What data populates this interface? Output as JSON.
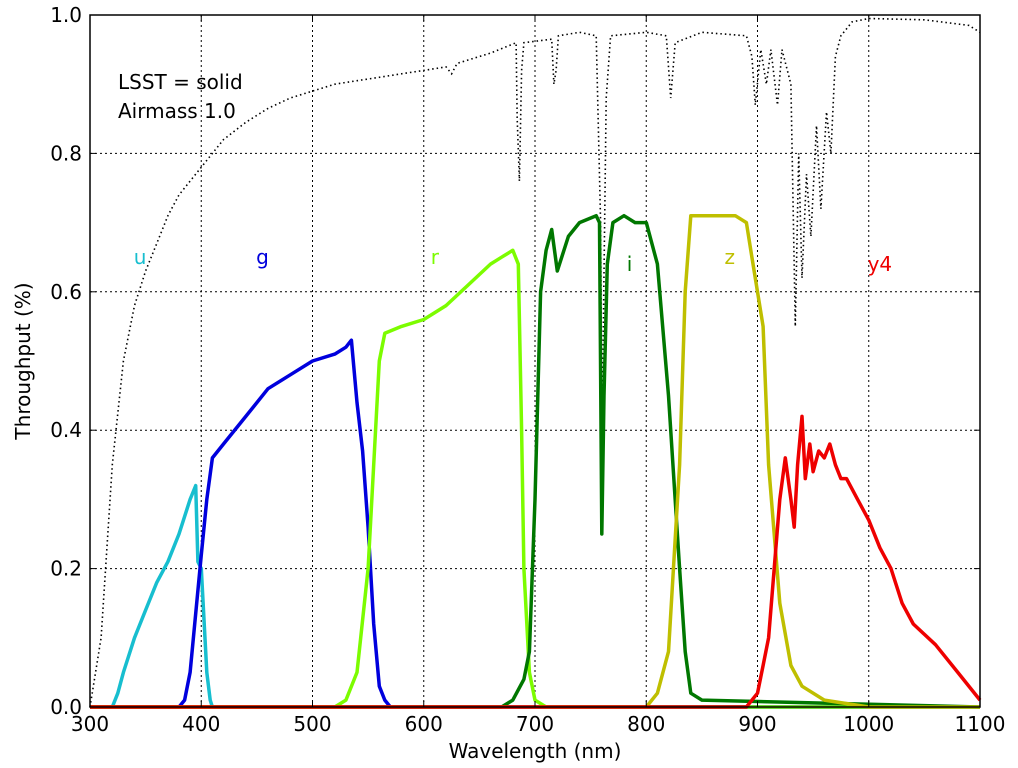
{
  "chart_data": {
    "type": "line",
    "title": "",
    "xlabel": "Wavelength (nm)",
    "ylabel": "Throughput (%)",
    "xlim": [
      300,
      1100
    ],
    "ylim": [
      0.0,
      1.0
    ],
    "xticks": [
      "300",
      "400",
      "500",
      "600",
      "700",
      "800",
      "900",
      "1000",
      "1100"
    ],
    "yticks": [
      "0.0",
      "0.2",
      "0.4",
      "0.6",
      "0.8",
      "1.0"
    ],
    "grid": true,
    "annotations": [
      "LSST = solid",
      "Airmass 1.0"
    ],
    "atmosphere": {
      "style": "dotted",
      "color": "#000000",
      "points": [
        [
          300,
          0
        ],
        [
          310,
          0.1
        ],
        [
          320,
          0.35
        ],
        [
          330,
          0.5
        ],
        [
          340,
          0.58
        ],
        [
          350,
          0.63
        ],
        [
          360,
          0.67
        ],
        [
          370,
          0.71
        ],
        [
          380,
          0.74
        ],
        [
          390,
          0.76
        ],
        [
          400,
          0.78
        ],
        [
          420,
          0.82
        ],
        [
          440,
          0.845
        ],
        [
          460,
          0.865
        ],
        [
          480,
          0.88
        ],
        [
          500,
          0.89
        ],
        [
          520,
          0.9
        ],
        [
          540,
          0.905
        ],
        [
          560,
          0.91
        ],
        [
          580,
          0.915
        ],
        [
          600,
          0.92
        ],
        [
          620,
          0.925
        ],
        [
          625,
          0.915
        ],
        [
          630,
          0.93
        ],
        [
          660,
          0.945
        ],
        [
          680,
          0.958
        ],
        [
          683,
          0.96
        ],
        [
          684,
          0.85
        ],
        [
          686,
          0.76
        ],
        [
          688,
          0.92
        ],
        [
          690,
          0.96
        ],
        [
          715,
          0.965
        ],
        [
          717,
          0.9
        ],
        [
          719,
          0.92
        ],
        [
          721,
          0.97
        ],
        [
          740,
          0.975
        ],
        [
          755,
          0.97
        ],
        [
          759,
          0.7
        ],
        [
          760,
          0.43
        ],
        [
          761,
          0.5
        ],
        [
          764,
          0.88
        ],
        [
          768,
          0.97
        ],
        [
          800,
          0.975
        ],
        [
          818,
          0.97
        ],
        [
          822,
          0.88
        ],
        [
          826,
          0.96
        ],
        [
          850,
          0.975
        ],
        [
          890,
          0.97
        ],
        [
          895,
          0.94
        ],
        [
          898,
          0.87
        ],
        [
          903,
          0.95
        ],
        [
          908,
          0.9
        ],
        [
          912,
          0.95
        ],
        [
          918,
          0.87
        ],
        [
          922,
          0.95
        ],
        [
          930,
          0.9
        ],
        [
          934,
          0.55
        ],
        [
          937,
          0.8
        ],
        [
          940,
          0.62
        ],
        [
          944,
          0.77
        ],
        [
          948,
          0.68
        ],
        [
          953,
          0.84
        ],
        [
          957,
          0.72
        ],
        [
          962,
          0.86
        ],
        [
          966,
          0.8
        ],
        [
          970,
          0.94
        ],
        [
          975,
          0.97
        ],
        [
          985,
          0.99
        ],
        [
          1000,
          0.995
        ],
        [
          1050,
          0.993
        ],
        [
          1090,
          0.985
        ],
        [
          1100,
          0.975
        ]
      ]
    },
    "series": [
      {
        "name": "u",
        "color": "#17becf",
        "points": [
          [
            300,
            0
          ],
          [
            320,
            0
          ],
          [
            325,
            0.02
          ],
          [
            330,
            0.05
          ],
          [
            340,
            0.1
          ],
          [
            350,
            0.14
          ],
          [
            360,
            0.18
          ],
          [
            370,
            0.21
          ],
          [
            380,
            0.25
          ],
          [
            390,
            0.3
          ],
          [
            395,
            0.32
          ],
          [
            397,
            0.21
          ],
          [
            400,
            0.2
          ],
          [
            405,
            0.05
          ],
          [
            408,
            0.01
          ],
          [
            410,
            0
          ],
          [
            1100,
            0
          ]
        ]
      },
      {
        "name": "g",
        "color": "#0000dd",
        "points": [
          [
            300,
            0
          ],
          [
            380,
            0
          ],
          [
            385,
            0.01
          ],
          [
            390,
            0.05
          ],
          [
            400,
            0.22
          ],
          [
            405,
            0.3
          ],
          [
            410,
            0.36
          ],
          [
            420,
            0.38
          ],
          [
            440,
            0.42
          ],
          [
            460,
            0.46
          ],
          [
            480,
            0.48
          ],
          [
            500,
            0.5
          ],
          [
            520,
            0.51
          ],
          [
            530,
            0.52
          ],
          [
            535,
            0.53
          ],
          [
            540,
            0.44
          ],
          [
            545,
            0.37
          ],
          [
            550,
            0.26
          ],
          [
            555,
            0.12
          ],
          [
            560,
            0.03
          ],
          [
            565,
            0.01
          ],
          [
            570,
            0
          ],
          [
            1100,
            0
          ]
        ]
      },
      {
        "name": "r",
        "color": "#7cfc00",
        "points": [
          [
            300,
            0
          ],
          [
            520,
            0
          ],
          [
            530,
            0.01
          ],
          [
            540,
            0.05
          ],
          [
            550,
            0.2
          ],
          [
            555,
            0.35
          ],
          [
            560,
            0.5
          ],
          [
            565,
            0.54
          ],
          [
            580,
            0.55
          ],
          [
            600,
            0.56
          ],
          [
            620,
            0.58
          ],
          [
            640,
            0.61
          ],
          [
            660,
            0.64
          ],
          [
            670,
            0.65
          ],
          [
            680,
            0.66
          ],
          [
            685,
            0.64
          ],
          [
            688,
            0.4
          ],
          [
            690,
            0.2
          ],
          [
            695,
            0.05
          ],
          [
            700,
            0.01
          ],
          [
            710,
            0
          ],
          [
            1100,
            0
          ]
        ]
      },
      {
        "name": "i",
        "color": "#007700",
        "points": [
          [
            300,
            0
          ],
          [
            670,
            0
          ],
          [
            680,
            0.01
          ],
          [
            690,
            0.04
          ],
          [
            695,
            0.08
          ],
          [
            700,
            0.3
          ],
          [
            705,
            0.6
          ],
          [
            710,
            0.66
          ],
          [
            715,
            0.69
          ],
          [
            720,
            0.63
          ],
          [
            730,
            0.68
          ],
          [
            740,
            0.7
          ],
          [
            755,
            0.71
          ],
          [
            758,
            0.7
          ],
          [
            760,
            0.25
          ],
          [
            762,
            0.45
          ],
          [
            765,
            0.64
          ],
          [
            770,
            0.7
          ],
          [
            780,
            0.71
          ],
          [
            790,
            0.7
          ],
          [
            800,
            0.7
          ],
          [
            810,
            0.64
          ],
          [
            820,
            0.45
          ],
          [
            830,
            0.2
          ],
          [
            835,
            0.08
          ],
          [
            840,
            0.02
          ],
          [
            850,
            0.01
          ],
          [
            1100,
            0
          ]
        ]
      },
      {
        "name": "z",
        "color": "#bfbf00",
        "points": [
          [
            300,
            0
          ],
          [
            800,
            0
          ],
          [
            810,
            0.02
          ],
          [
            820,
            0.08
          ],
          [
            830,
            0.35
          ],
          [
            835,
            0.6
          ],
          [
            840,
            0.71
          ],
          [
            860,
            0.71
          ],
          [
            880,
            0.71
          ],
          [
            890,
            0.7
          ],
          [
            895,
            0.65
          ],
          [
            900,
            0.6
          ],
          [
            905,
            0.55
          ],
          [
            910,
            0.35
          ],
          [
            920,
            0.15
          ],
          [
            930,
            0.06
          ],
          [
            940,
            0.03
          ],
          [
            960,
            0.01
          ],
          [
            1000,
            0
          ],
          [
            1100,
            0
          ]
        ]
      },
      {
        "name": "y4",
        "color": "#ee0000",
        "points": [
          [
            300,
            0
          ],
          [
            890,
            0
          ],
          [
            900,
            0.02
          ],
          [
            905,
            0.06
          ],
          [
            910,
            0.1
          ],
          [
            915,
            0.2
          ],
          [
            920,
            0.3
          ],
          [
            925,
            0.36
          ],
          [
            930,
            0.3
          ],
          [
            933,
            0.26
          ],
          [
            936,
            0.35
          ],
          [
            940,
            0.42
          ],
          [
            943,
            0.33
          ],
          [
            947,
            0.38
          ],
          [
            950,
            0.34
          ],
          [
            955,
            0.37
          ],
          [
            960,
            0.36
          ],
          [
            965,
            0.38
          ],
          [
            970,
            0.35
          ],
          [
            975,
            0.33
          ],
          [
            980,
            0.33
          ],
          [
            990,
            0.3
          ],
          [
            1000,
            0.27
          ],
          [
            1010,
            0.23
          ],
          [
            1020,
            0.2
          ],
          [
            1030,
            0.15
          ],
          [
            1040,
            0.12
          ],
          [
            1060,
            0.09
          ],
          [
            1080,
            0.05
          ],
          [
            1100,
            0.01
          ]
        ]
      }
    ],
    "series_labels": [
      {
        "text": "u",
        "x": 345,
        "y": 0.65,
        "color": "#17becf"
      },
      {
        "text": "g",
        "x": 455,
        "y": 0.65,
        "color": "#0000dd"
      },
      {
        "text": "r",
        "x": 610,
        "y": 0.65,
        "color": "#7cfc00"
      },
      {
        "text": "i",
        "x": 785,
        "y": 0.64,
        "color": "#007700"
      },
      {
        "text": "z",
        "x": 875,
        "y": 0.65,
        "color": "#bfbf00"
      },
      {
        "text": "y4",
        "x": 1010,
        "y": 0.64,
        "color": "#ee0000"
      }
    ]
  }
}
